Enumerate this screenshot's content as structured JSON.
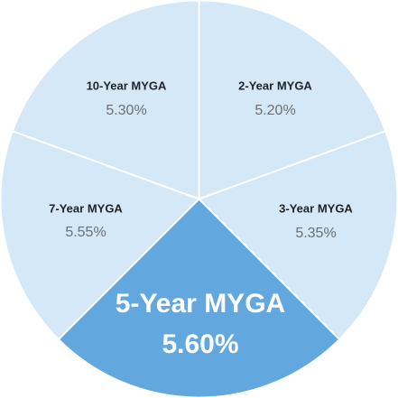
{
  "segments": [
    {
      "name": "10-Year MYGA",
      "rate": "5.30%"
    },
    {
      "name": "2-Year MYGA",
      "rate": "5.20%"
    },
    {
      "name": "3-Year MYGA",
      "rate": "5.35%"
    },
    {
      "name": "5-Year MYGA",
      "rate": "5.60%"
    },
    {
      "name": "7-Year MYGA",
      "rate": "5.55%"
    }
  ]
}
